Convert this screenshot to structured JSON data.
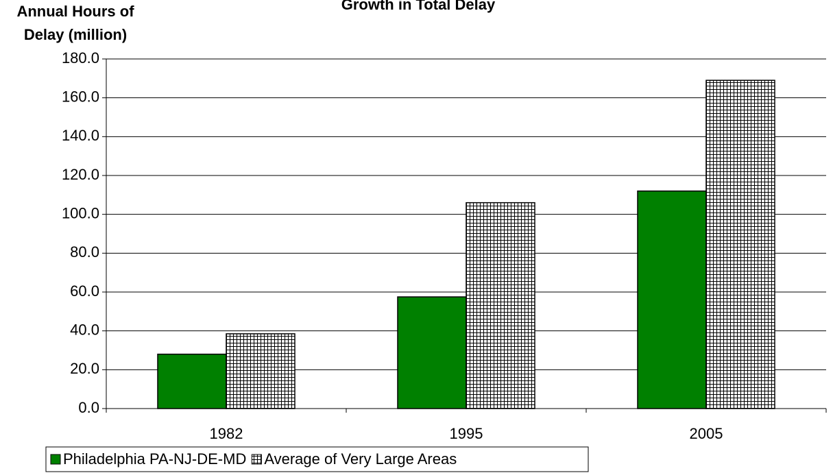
{
  "chart_data": {
    "type": "bar",
    "title": "Growth in Total Delay",
    "y_label_lines": [
      "Annual Hours of",
      "Delay (million)"
    ],
    "categories": [
      "1982",
      "1995",
      "2005"
    ],
    "series": [
      {
        "name": "Philadelphia PA-NJ-DE-MD",
        "color": "#008000",
        "pattern": "solid",
        "values": [
          28,
          57.5,
          112
        ]
      },
      {
        "name": "Average of Very Large Areas",
        "color": "#000000",
        "pattern": "grid",
        "values": [
          38.5,
          106,
          169
        ]
      }
    ],
    "ylim": [
      0,
      180
    ],
    "yticks": [
      {
        "value": 0,
        "label": "0.0"
      },
      {
        "value": 20,
        "label": "20.0"
      },
      {
        "value": 40,
        "label": "40.0"
      },
      {
        "value": 60,
        "label": "60.0"
      },
      {
        "value": 80,
        "label": "80.0"
      },
      {
        "value": 100,
        "label": "100.0"
      },
      {
        "value": 120,
        "label": "120.0"
      },
      {
        "value": 140,
        "label": "140.0"
      },
      {
        "value": 160,
        "label": "160.0"
      },
      {
        "value": 180,
        "label": "180.0"
      }
    ],
    "grid": true,
    "legend": "bottom-left"
  }
}
